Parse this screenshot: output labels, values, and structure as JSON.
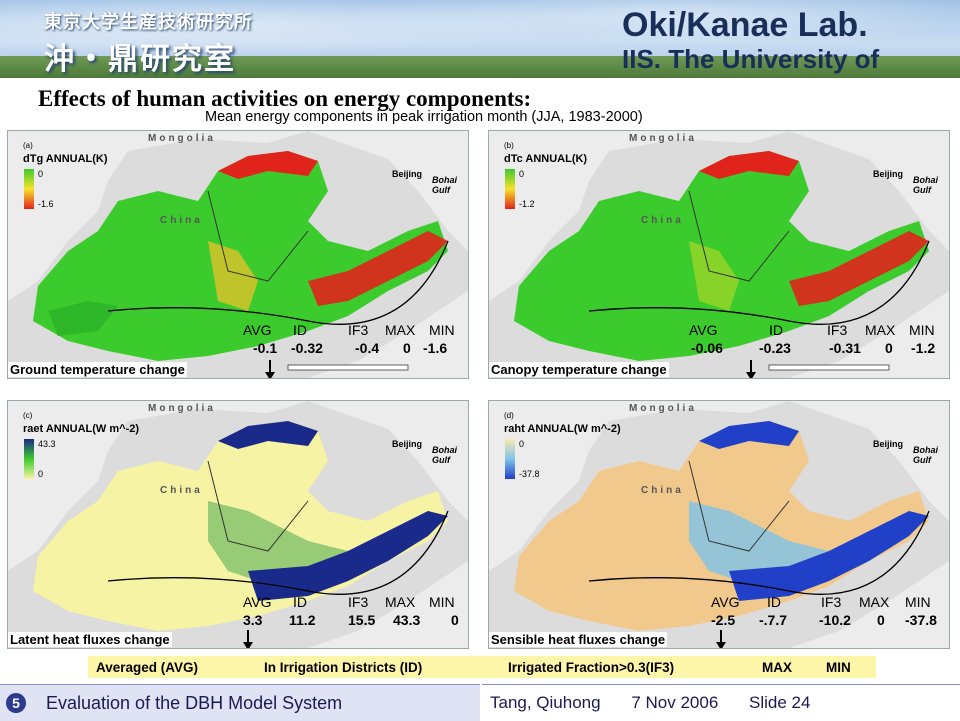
{
  "header": {
    "institute_jp": "東京大学生産技術研究所",
    "lab_jp": "沖・鼎研究室",
    "lab_en": "Oki/Kanae Lab.",
    "institute_en": "IIS. The University of Tokyo"
  },
  "title": "Effects of human activities on energy components:",
  "subtitle": "Mean energy components in peak irrigation month (JJA, 1983-2000)",
  "panels": [
    {
      "letter": "(a)",
      "map_title": "dTg ANNUAL(K)",
      "legend_top": "0",
      "legend_bottom": "-1.6",
      "caption": "Ground temperature change",
      "stats_header": [
        "AVG",
        "ID",
        "IF3",
        "MAX",
        "MIN"
      ],
      "stats_values": [
        "-0.1",
        "-0.32",
        "-0.4",
        "0",
        "-1.6"
      ]
    },
    {
      "letter": "(b)",
      "map_title": "dTc ANNUAL(K)",
      "legend_top": "0",
      "legend_bottom": "-1.2",
      "caption": "Canopy temperature change",
      "stats_header": [
        "AVG",
        "ID",
        "IF3",
        "MAX",
        "MIN"
      ],
      "stats_values": [
        "-0.06",
        "-0.23",
        "-0.31",
        "0",
        "-1.2"
      ]
    },
    {
      "letter": "(c)",
      "map_title": "raet ANNUAL(W m^-2)",
      "legend_top": "43.3",
      "legend_bottom": "0",
      "caption": "Latent heat fluxes change",
      "stats_header": [
        "AVG",
        "ID",
        "IF3",
        "MAX",
        "MIN"
      ],
      "stats_values": [
        "3.3",
        "11.2",
        "15.5",
        "43.3",
        "0"
      ]
    },
    {
      "letter": "(d)",
      "map_title": "raht ANNUAL(W m^-2)",
      "legend_top": "0",
      "legend_bottom": "-37.8",
      "caption": "Sensible heat fluxes change",
      "stats_header": [
        "AVG",
        "ID",
        "IF3",
        "MAX",
        "MIN"
      ],
      "stats_values": [
        "-2.5",
        "-.7.7",
        "-10.2",
        "0",
        "-37.8"
      ]
    }
  ],
  "map_labels": {
    "country_north": "Mongolia",
    "country_main": "China",
    "city": "Beijing",
    "gulf": "Bohai Gulf"
  },
  "abbreviations": [
    "Averaged (AVG)",
    "In Irrigation Districts (ID)",
    "Irrigated Fraction>0.3(IF3)",
    "MAX",
    "MIN"
  ],
  "footer": {
    "section_number": "5",
    "section_title": "Evaluation of the DBH Model System",
    "author": "Tang, Qiuhong",
    "date": "7 Nov 2006",
    "slide": "Slide 24"
  },
  "colors": {
    "footer_bg": "#dfe3f3",
    "highlight_bg": "#fdf5a8",
    "green": "#3ccb2c",
    "red": "#e0241c",
    "navy": "#1a2a8a",
    "pale_yellow": "#f6f3a4",
    "sand": "#f1c98c",
    "sky_blue": "#7fc3ea"
  }
}
